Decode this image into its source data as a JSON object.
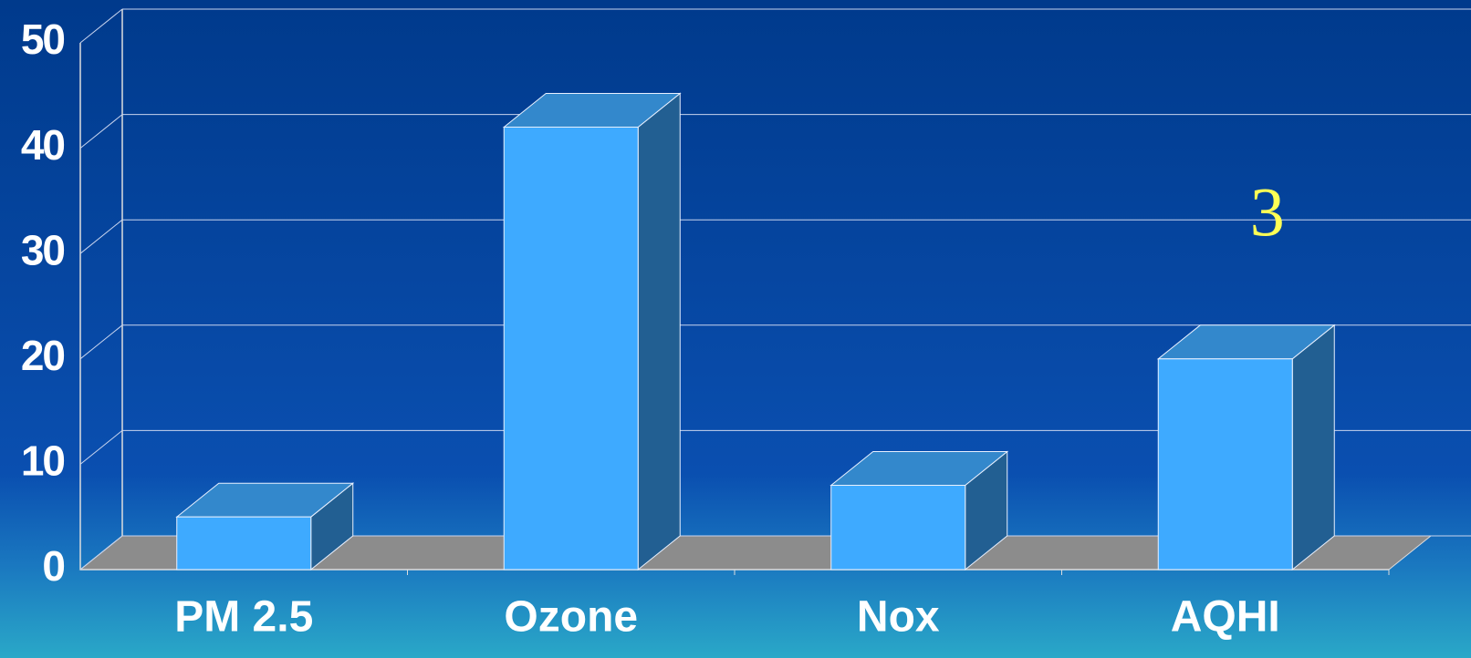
{
  "chart_data": {
    "type": "bar3d",
    "categories": [
      "PM 2.5",
      "Ozone",
      "Nox",
      "AQHI"
    ],
    "values": [
      5,
      42,
      8,
      20
    ],
    "color": "#3eaaff",
    "ylim": [
      0,
      50
    ],
    "yticks": [
      0,
      10,
      20,
      30,
      40,
      50
    ],
    "grid": true,
    "annotations": [
      {
        "text": "3",
        "category": "AQHI",
        "y": 30
      }
    ]
  }
}
